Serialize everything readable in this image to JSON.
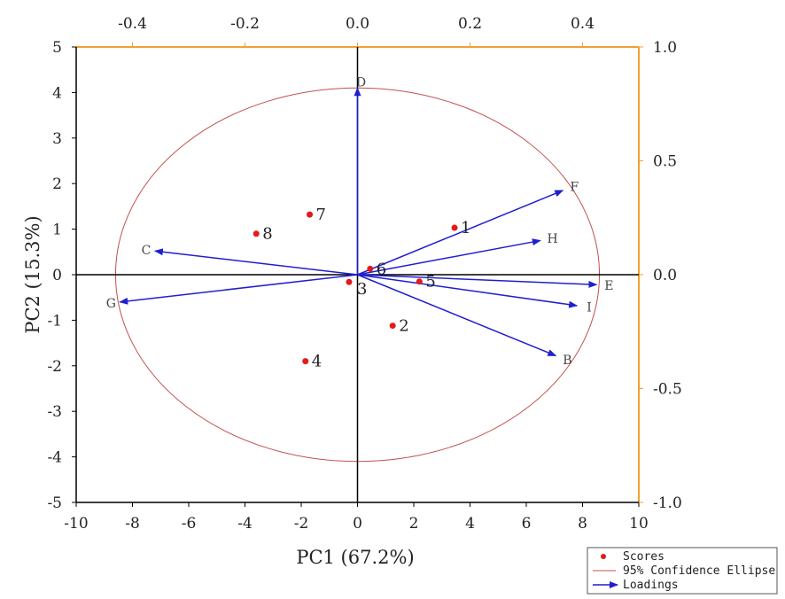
{
  "chart_data": {
    "type": "scatter",
    "subtype": "biplot",
    "xlabel": "PC1 (67.2%)",
    "ylabel": "PC2 (15.3%)",
    "xlim": [
      -10,
      10
    ],
    "ylim": [
      -5,
      5
    ],
    "x_ticks": [
      "-10",
      "-8",
      "-6",
      "-4",
      "-2",
      "0",
      "2",
      "4",
      "6",
      "8",
      "10"
    ],
    "y_ticks": [
      "-5",
      "-4",
      "-3",
      "-2",
      "-1",
      "0",
      "1",
      "2",
      "3",
      "4",
      "5"
    ],
    "top_axis": {
      "lim": [
        -0.5,
        0.5
      ],
      "ticks": [
        -0.4,
        -0.2,
        0.0,
        0.2,
        0.4
      ],
      "labels": [
        "-0.4",
        "-0.2",
        "0.0",
        "0.2",
        "0.4"
      ]
    },
    "right_axis": {
      "lim": [
        -1.0,
        1.0
      ],
      "ticks": [
        1.0,
        0.5,
        0.0,
        -0.5,
        -1.0
      ],
      "labels": [
        "1.0",
        "0.5",
        "0.0",
        "-0.5",
        "-1.0"
      ]
    },
    "scores": [
      {
        "label": "1",
        "x": 3.45,
        "y": 1.03
      },
      {
        "label": "2",
        "x": 1.25,
        "y": -1.12
      },
      {
        "label": "3",
        "x": -0.3,
        "y": -0.16
      },
      {
        "label": "4",
        "x": -1.85,
        "y": -1.9
      },
      {
        "label": "5",
        "x": 2.2,
        "y": -0.15
      },
      {
        "label": "6",
        "x": 0.45,
        "y": 0.13
      },
      {
        "label": "7",
        "x": -1.7,
        "y": 1.32
      },
      {
        "label": "8",
        "x": -3.6,
        "y": 0.9
      }
    ],
    "loadings": [
      {
        "label": "D",
        "x": 0.0,
        "y": 4.1
      },
      {
        "label": "F",
        "x": 7.3,
        "y": 1.85
      },
      {
        "label": "H",
        "x": 6.5,
        "y": 0.75
      },
      {
        "label": "E",
        "x": 8.5,
        "y": -0.22
      },
      {
        "label": "I",
        "x": 7.8,
        "y": -0.68
      },
      {
        "label": "B",
        "x": 7.05,
        "y": -1.78
      },
      {
        "label": "C",
        "x": -7.2,
        "y": 0.52
      },
      {
        "label": "G",
        "x": -8.45,
        "y": -0.6
      }
    ],
    "ellipse": {
      "cx": 0,
      "cy": 0,
      "rx": 8.6,
      "ry": 4.1
    },
    "legend": {
      "position": "bottom-right",
      "entries": [
        {
          "type": "marker",
          "label": "Scores"
        },
        {
          "type": "line",
          "label": "95% Confidence Ellipse"
        },
        {
          "type": "arrow",
          "label": "Loadings"
        }
      ]
    },
    "colors": {
      "scores": "#e41a1c",
      "ellipse": "#c0504d",
      "loadings": "#1f1fd0",
      "frame_top_right": "#f0a030",
      "frame_bottom_left": "#000000"
    }
  }
}
